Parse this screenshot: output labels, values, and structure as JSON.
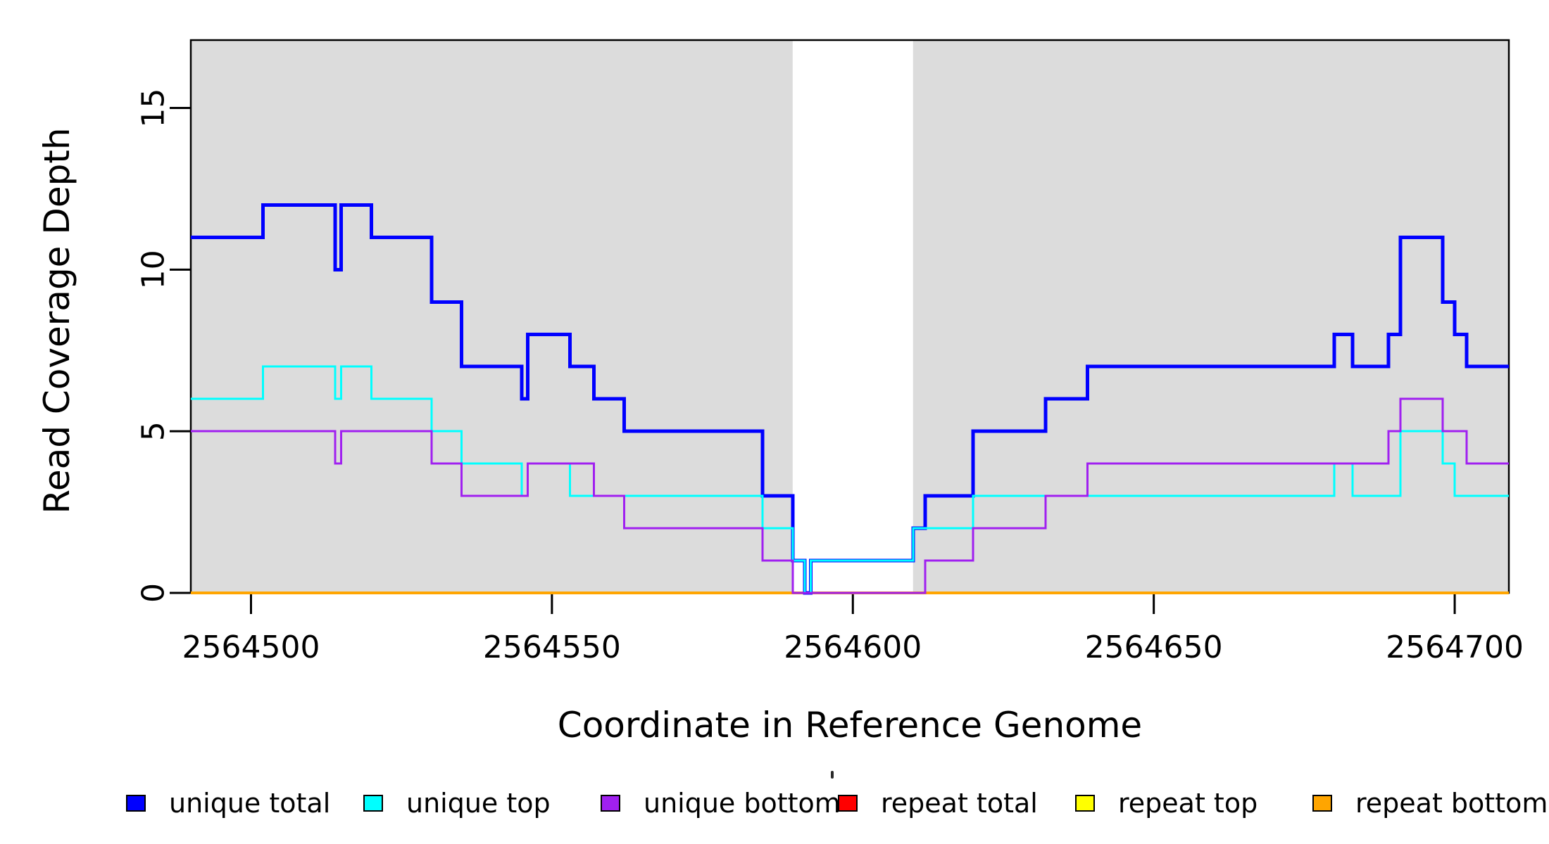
{
  "chart_data": {
    "type": "line",
    "subtype": "step-coverage",
    "title": "",
    "xlabel": "Coordinate in Reference Genome",
    "ylabel": "Read Coverage Depth",
    "xlim": [
      2564490,
      2564709
    ],
    "ylim": [
      0,
      17.1
    ],
    "x_ticks": [
      2564500,
      2564550,
      2564600,
      2564650,
      2564700
    ],
    "y_ticks": [
      0,
      5,
      10,
      15
    ],
    "grid": "off",
    "legend_position": "bottom",
    "plot_background": "#ffffff",
    "shaded_regions": [
      {
        "x0": 2564490,
        "x1": 2564590,
        "color": "#DCDCDC"
      },
      {
        "x0": 2564610,
        "x1": 2564709,
        "color": "#DCDCDC"
      }
    ],
    "series": [
      {
        "name": "repeat total",
        "color": "#FF0000",
        "line_width": 4,
        "steps": [
          [
            2564490,
            0
          ]
        ]
      },
      {
        "name": "repeat top",
        "color": "#FFFF00",
        "line_width": 4,
        "steps": [
          [
            2564490,
            0
          ]
        ]
      },
      {
        "name": "repeat bottom",
        "color": "#FFA500",
        "line_width": 4,
        "steps": [
          [
            2564490,
            0
          ]
        ]
      },
      {
        "name": "unique total",
        "color": "#0000FF",
        "line_width": 5,
        "steps": [
          [
            2564490,
            11
          ],
          [
            2564502,
            12
          ],
          [
            2564514,
            10
          ],
          [
            2564515,
            12
          ],
          [
            2564520,
            11
          ],
          [
            2564530,
            9
          ],
          [
            2564535,
            7
          ],
          [
            2564545,
            6
          ],
          [
            2564546,
            8
          ],
          [
            2564553,
            7
          ],
          [
            2564557,
            6
          ],
          [
            2564562,
            5
          ],
          [
            2564585,
            3
          ],
          [
            2564590,
            1
          ],
          [
            2564592,
            0
          ],
          [
            2564593,
            1
          ],
          [
            2564610,
            2
          ],
          [
            2564612,
            3
          ],
          [
            2564620,
            5
          ],
          [
            2564632,
            6
          ],
          [
            2564639,
            7
          ],
          [
            2564680,
            8
          ],
          [
            2564683,
            7
          ],
          [
            2564689,
            8
          ],
          [
            2564691,
            11
          ],
          [
            2564698,
            9
          ],
          [
            2564700,
            8
          ],
          [
            2564702,
            7
          ]
        ]
      },
      {
        "name": "unique top",
        "color": "#00FFFF",
        "line_width": 3,
        "steps": [
          [
            2564490,
            6
          ],
          [
            2564502,
            7
          ],
          [
            2564514,
            6
          ],
          [
            2564515,
            7
          ],
          [
            2564520,
            6
          ],
          [
            2564530,
            5
          ],
          [
            2564535,
            4
          ],
          [
            2564545,
            3
          ],
          [
            2564546,
            4
          ],
          [
            2564553,
            3
          ],
          [
            2564585,
            2
          ],
          [
            2564590,
            1
          ],
          [
            2564592,
            0
          ],
          [
            2564593,
            1
          ],
          [
            2564610,
            2
          ],
          [
            2564620,
            3
          ],
          [
            2564680,
            4
          ],
          [
            2564683,
            3
          ],
          [
            2564691,
            5
          ],
          [
            2564698,
            4
          ],
          [
            2564700,
            3
          ]
        ]
      },
      {
        "name": "unique bottom",
        "color": "#A020F0",
        "line_width": 3,
        "steps": [
          [
            2564490,
            5
          ],
          [
            2564514,
            4
          ],
          [
            2564515,
            5
          ],
          [
            2564530,
            4
          ],
          [
            2564535,
            3
          ],
          [
            2564546,
            4
          ],
          [
            2564557,
            3
          ],
          [
            2564562,
            2
          ],
          [
            2564585,
            1
          ],
          [
            2564590,
            0
          ],
          [
            2564612,
            1
          ],
          [
            2564620,
            2
          ],
          [
            2564632,
            3
          ],
          [
            2564639,
            4
          ],
          [
            2564689,
            5
          ],
          [
            2564691,
            6
          ],
          [
            2564698,
            5
          ],
          [
            2564702,
            4
          ]
        ]
      }
    ],
    "legend": [
      {
        "label": "unique total",
        "color": "#0000FF"
      },
      {
        "label": "unique top",
        "color": "#00FFFF"
      },
      {
        "label": "unique bottom",
        "color": "#A020F0"
      },
      {
        "label": "repeat total",
        "color": "#FF0000"
      },
      {
        "label": "repeat top",
        "color": "#FFFF00"
      },
      {
        "label": "repeat bottom",
        "color": "#FFA500"
      }
    ]
  }
}
